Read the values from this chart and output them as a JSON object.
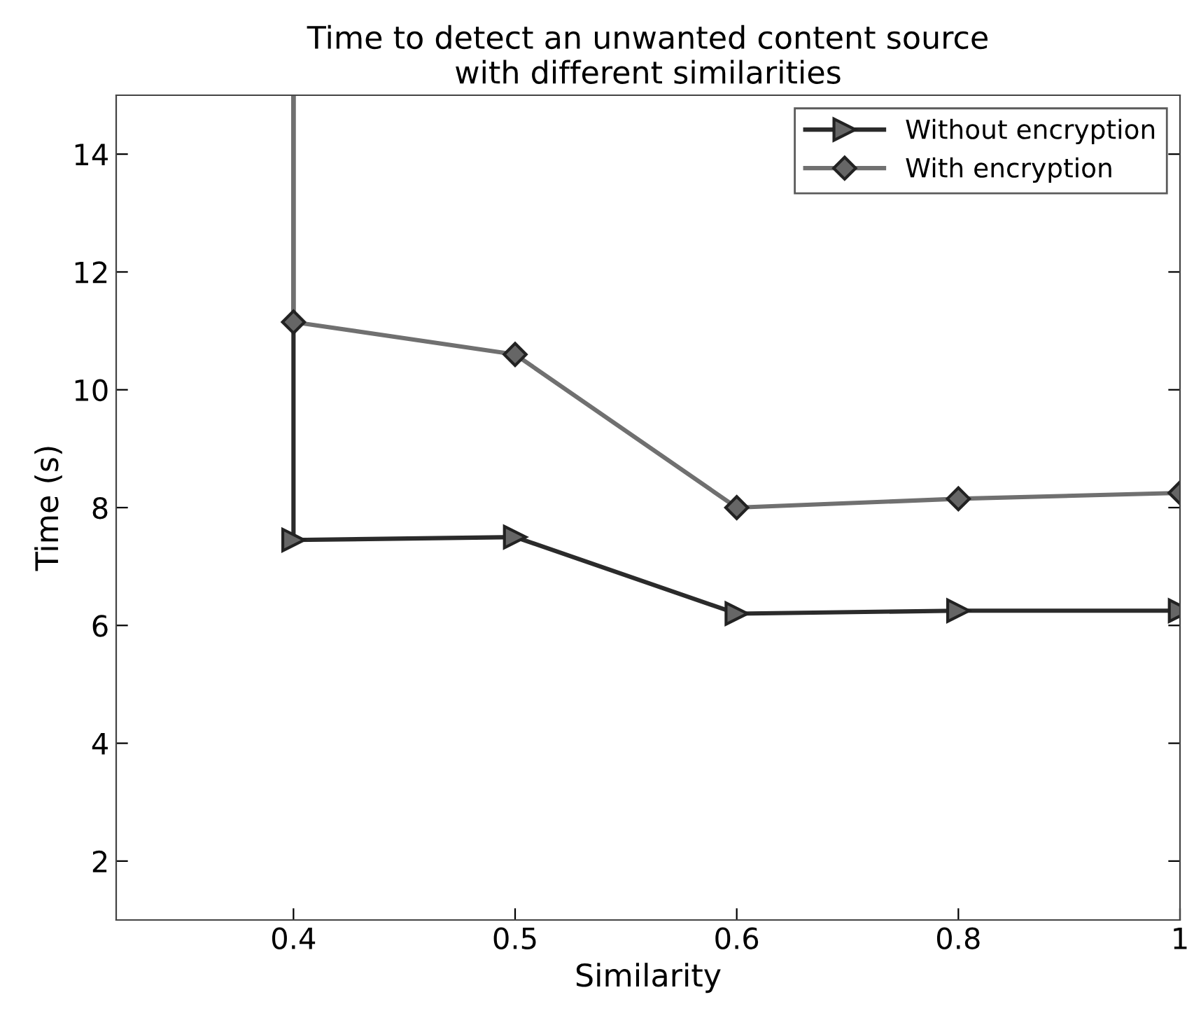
{
  "chart_data": {
    "type": "line",
    "title": "Time to detect an unwanted content source\nwith different similarities",
    "xlabel": "Similarity",
    "ylabel": "Time (s)",
    "categories": [
      "0.4",
      "0.5",
      "0.6",
      "0.8",
      "1"
    ],
    "series": [
      {
        "name": "Without encryption",
        "color": "#2b2b2b",
        "marker": "triangle",
        "x": [
          "0.4",
          "0.4",
          "0.5",
          "0.6",
          "0.8",
          "1"
        ],
        "values": [
          15,
          7.45,
          7.5,
          6.2,
          6.25,
          6.25
        ]
      },
      {
        "name": "With encryption",
        "color": "#707070",
        "marker": "diamond",
        "x": [
          "0.4",
          "0.4",
          "0.5",
          "0.6",
          "0.8",
          "1"
        ],
        "values": [
          15,
          11.15,
          10.6,
          8.0,
          8.15,
          8.25
        ]
      }
    ],
    "ylim": [
      1,
      15
    ],
    "yticks": [
      2,
      4,
      6,
      8,
      10,
      12,
      14
    ],
    "grid": false,
    "legend": "top right",
    "line_style": "solid"
  }
}
